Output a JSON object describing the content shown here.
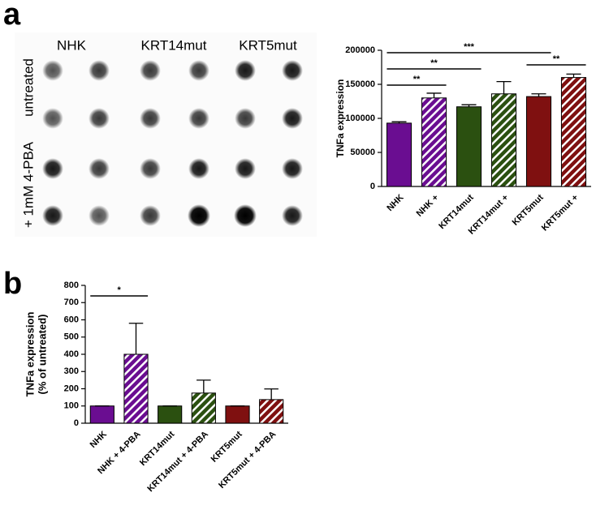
{
  "panels": [
    "a",
    "b"
  ],
  "blot": {
    "columns": [
      "NHK",
      "KRT14mut",
      "KRT5mut"
    ],
    "rows": [
      "untreated",
      "+ 1mM 4-PBA"
    ]
  },
  "chart_data": [
    {
      "type": "bar",
      "ylabel": "TNFa expression",
      "categories": [
        "NHK",
        "NHK +",
        "KRT14mut",
        "KRT14mut +",
        "KRT5mut",
        "KRT5mut +"
      ],
      "values": [
        93000,
        130000,
        117000,
        136000,
        132000,
        160000
      ],
      "errors": [
        2000,
        7000,
        3000,
        18000,
        4000,
        5000
      ],
      "colors": [
        "#6a0d91",
        "#6a0d91",
        "#2b5010",
        "#2b5010",
        "#7f1010",
        "#7f1010"
      ],
      "hatched": [
        false,
        true,
        false,
        true,
        false,
        true
      ],
      "ylim": [
        0,
        200000
      ],
      "yticks": [
        0,
        50000,
        100000,
        150000,
        200000
      ],
      "annotations": [
        "**",
        "**",
        "***",
        "**"
      ]
    },
    {
      "type": "bar",
      "ylabel": [
        "TNFa expression",
        "(% of untreated)"
      ],
      "categories": [
        "NHK",
        "NHK + 4-PBA",
        "KRT14mut",
        "KRT14mut + 4-PBA",
        "KRT5mut",
        "KRT5mut + 4-PBA"
      ],
      "values": [
        100,
        400,
        100,
        175,
        100,
        137
      ],
      "errors": [
        0,
        180,
        0,
        75,
        0,
        62
      ],
      "colors": [
        "#6a0d91",
        "#6a0d91",
        "#2b5010",
        "#2b5010",
        "#7f1010",
        "#7f1010"
      ],
      "hatched": [
        false,
        true,
        false,
        true,
        false,
        true
      ],
      "ylim": [
        0,
        800
      ],
      "yticks": [
        0,
        100,
        200,
        300,
        400,
        500,
        600,
        700,
        800
      ],
      "annotations": [
        "*"
      ]
    }
  ]
}
